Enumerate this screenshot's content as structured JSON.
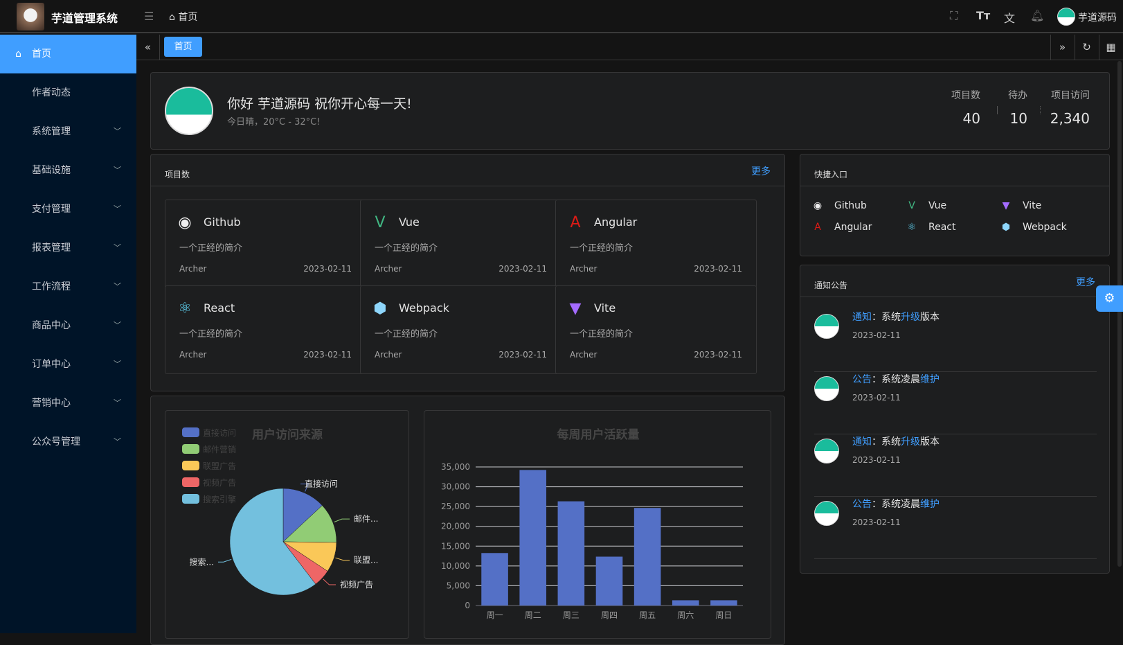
{
  "header": {
    "app_title": "芋道管理系统",
    "breadcrumb": "首页",
    "username": "芋道源码",
    "icons": [
      "fullscreen-icon",
      "font-size-icon",
      "translate-icon",
      "bell-icon"
    ]
  },
  "sidebar": {
    "items": [
      {
        "label": "首页",
        "icon": "home-icon",
        "active": true
      },
      {
        "label": "作者动态"
      },
      {
        "label": "系统管理",
        "expandable": true
      },
      {
        "label": "基础设施",
        "expandable": true
      },
      {
        "label": "支付管理",
        "expandable": true
      },
      {
        "label": "报表管理",
        "expandable": true
      },
      {
        "label": "工作流程",
        "expandable": true
      },
      {
        "label": "商品中心",
        "expandable": true
      },
      {
        "label": "订单中心",
        "expandable": true
      },
      {
        "label": "营销中心",
        "expandable": true
      },
      {
        "label": "公众号管理",
        "expandable": true
      }
    ]
  },
  "tags": {
    "active": "首页"
  },
  "welcome": {
    "greeting": "你好 芋道源码 祝你开心每一天!",
    "weather": "今日晴，20°C - 32°C!",
    "stats": [
      {
        "label": "项目数",
        "value": "40"
      },
      {
        "label": "待办",
        "value": "10"
      },
      {
        "label": "项目访问",
        "value": "2,340"
      }
    ]
  },
  "projects": {
    "title": "项目数",
    "more": "更多",
    "items": [
      {
        "name": "Github",
        "desc": "一个正经的简介",
        "author": "Archer",
        "date": "2023-02-11",
        "icon": "github-icon"
      },
      {
        "name": "Vue",
        "desc": "一个正经的简介",
        "author": "Archer",
        "date": "2023-02-11",
        "icon": "vue-icon"
      },
      {
        "name": "Angular",
        "desc": "一个正经的简介",
        "author": "Archer",
        "date": "2023-02-11",
        "icon": "angular-icon"
      },
      {
        "name": "React",
        "desc": "一个正经的简介",
        "author": "Archer",
        "date": "2023-02-11",
        "icon": "react-icon"
      },
      {
        "name": "Webpack",
        "desc": "一个正经的简介",
        "author": "Archer",
        "date": "2023-02-11",
        "icon": "webpack-icon"
      },
      {
        "name": "Vite",
        "desc": "一个正经的简介",
        "author": "Archer",
        "date": "2023-02-11",
        "icon": "vite-icon"
      }
    ]
  },
  "shortcuts": {
    "title": "快捷入口",
    "items": [
      "Github",
      "Vue",
      "Vite",
      "Angular",
      "React",
      "Webpack"
    ]
  },
  "notices": {
    "title": "通知公告",
    "more": "更多",
    "items": [
      {
        "type": "通知",
        "sep": "：",
        "pre": "系统",
        "hl": "升级",
        "post": "版本",
        "date": "2023-02-11"
      },
      {
        "type": "公告",
        "sep": "：",
        "pre": "系统凌晨",
        "hl": "维护",
        "post": "",
        "date": "2023-02-11"
      },
      {
        "type": "通知",
        "sep": "：",
        "pre": "系统",
        "hl": "升级",
        "post": "版本",
        "date": "2023-02-11"
      },
      {
        "type": "公告",
        "sep": "：",
        "pre": "系统凌晨",
        "hl": "维护",
        "post": "",
        "date": "2023-02-11"
      }
    ]
  },
  "chart_data": [
    {
      "type": "pie",
      "title": "用户访问来源",
      "legend": "top-left",
      "categories": [
        "直接访问",
        "邮件营销",
        "联盟广告",
        "视频广告",
        "搜索引擎"
      ],
      "labels": [
        "直接访问",
        "邮件...",
        "联盟...",
        "视频广告",
        "搜索..."
      ],
      "values": [
        335,
        310,
        234,
        135,
        1548
      ],
      "colors": [
        "#5470c6",
        "#91cc75",
        "#fac858",
        "#ee6666",
        "#73c0de"
      ]
    },
    {
      "type": "bar",
      "title": "每周用户活跃量",
      "categories": [
        "周一",
        "周二",
        "周三",
        "周四",
        "周五",
        "周六",
        "周日"
      ],
      "values": [
        13253,
        34235,
        26321,
        12340,
        24643,
        1322,
        1324
      ],
      "ylim": [
        0,
        35000
      ],
      "yticks": [
        "0",
        "5,000",
        "10,000",
        "15,000",
        "20,000",
        "25,000",
        "30,000",
        "35,000"
      ],
      "grid": true,
      "color": "#5470c6"
    }
  ]
}
